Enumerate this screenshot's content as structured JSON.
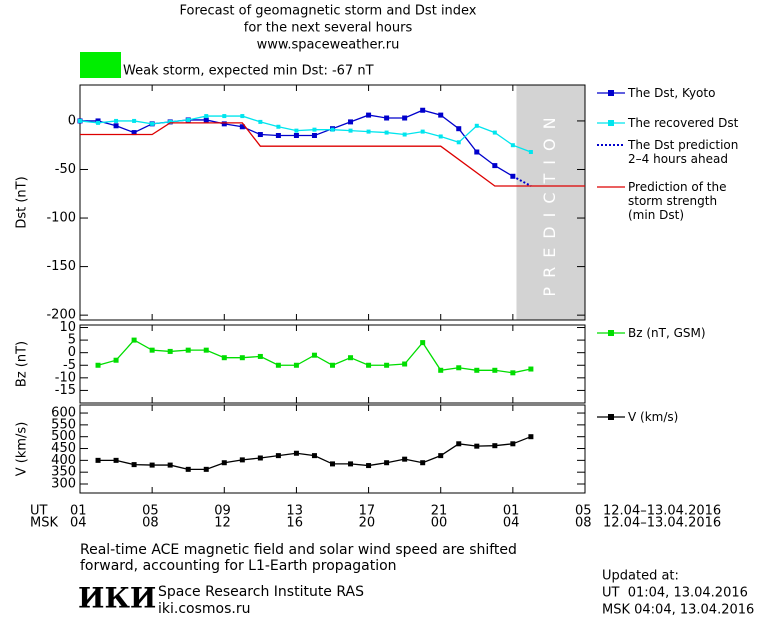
{
  "header": {
    "title_lines": [
      "Forecast of geomagnetic storm and Dst index",
      "for the next several hours",
      "www.spaceweather.ru"
    ],
    "storm_label": "Weak storm, expected min Dst: -67 nT",
    "storm_color": "#00ee00"
  },
  "chart_data": [
    {
      "type": "line",
      "ylabel": "Dst (nT)",
      "xlim": [
        0,
        28
      ],
      "ylim": [
        -205,
        37
      ],
      "yticks": [
        0,
        -50,
        -100,
        -150,
        -200
      ],
      "forecast_region": {
        "x": [
          24.2,
          28
        ],
        "label": "PREDICTION",
        "color": "#d3d3d3"
      },
      "series": [
        {
          "name": "The Dst, Kyoto",
          "color": "#0000cc",
          "marker": "square",
          "x": [
            0,
            1,
            2,
            3,
            4,
            5,
            6,
            7,
            8,
            9,
            10,
            11,
            12,
            13,
            14,
            15,
            16,
            17,
            18,
            19,
            20,
            21,
            22,
            23,
            24
          ],
          "values": [
            0,
            0,
            -5,
            -12,
            -3,
            -1,
            1,
            1,
            -3,
            -6,
            -14,
            -15,
            -15,
            -15,
            -8,
            -1,
            6,
            3,
            3,
            11,
            6,
            -8,
            -32,
            -46,
            -57
          ]
        },
        {
          "name": "The recovered Dst",
          "color": "#00e5ee",
          "marker": "small-square",
          "x": [
            0,
            1,
            2,
            3,
            4,
            5,
            6,
            7,
            8,
            9,
            10,
            11,
            12,
            13,
            14,
            15,
            16,
            17,
            18,
            19,
            20,
            21,
            22,
            23,
            24,
            25
          ],
          "values": [
            0,
            -2,
            0,
            0,
            -3,
            -1,
            1,
            5,
            5,
            5,
            -1,
            -6,
            -10,
            -9,
            -9,
            -10,
            -11,
            -12,
            -14,
            -11,
            -16,
            -22,
            -5,
            -12,
            -25,
            -32
          ]
        },
        {
          "name": "The Dst prediction\n2–4 hours ahead",
          "color": "#0000cc",
          "style": "dotted",
          "x": [
            24,
            25
          ],
          "values": [
            -57,
            -67
          ]
        },
        {
          "name": "Prediction of the\nstorm strength\n(min Dst)",
          "color": "#dd0000",
          "x": [
            0,
            4,
            5,
            9,
            10,
            20,
            23,
            28
          ],
          "values": [
            -14,
            -14,
            -2,
            -2,
            -26,
            -26,
            -67,
            -67
          ]
        }
      ]
    },
    {
      "type": "line",
      "ylabel": "Bz (nT)",
      "xlim": [
        0,
        28
      ],
      "ylim": [
        -20,
        11
      ],
      "yticks": [
        10,
        5,
        0,
        -5,
        -10,
        -15
      ],
      "series": [
        {
          "name": "Bz (nT, GSM)",
          "color": "#00dd00",
          "marker": "square",
          "x": [
            1,
            2,
            3,
            4,
            5,
            6,
            7,
            8,
            9,
            10,
            11,
            12,
            13,
            14,
            15,
            16,
            17,
            18,
            19,
            20,
            21,
            22,
            23,
            24,
            25
          ],
          "values": [
            -5,
            -3,
            5,
            1,
            0.5,
            1,
            1,
            -2,
            -2,
            -1.5,
            -5,
            -5,
            -1,
            -5,
            -2,
            -5,
            -5,
            -4.5,
            4,
            -7,
            -6,
            -7,
            -7,
            -8,
            -6.5
          ]
        }
      ]
    },
    {
      "type": "line",
      "ylabel": "V (km/s)",
      "xlim": [
        0,
        28
      ],
      "ylim": [
        262,
        634
      ],
      "yticks": [
        300,
        350,
        400,
        450,
        500,
        550,
        600
      ],
      "xticks": [
        {
          "value": 0,
          "label": "01"
        },
        {
          "value": 4,
          "label": "05"
        },
        {
          "value": 8,
          "label": "09"
        },
        {
          "value": 12,
          "label": "13"
        },
        {
          "value": 16,
          "label": "17"
        },
        {
          "value": 20,
          "label": "21"
        },
        {
          "value": 24,
          "label": "01"
        },
        {
          "value": 28,
          "label": "05"
        }
      ],
      "xticks_msk": [
        {
          "value": 0,
          "label": "04"
        },
        {
          "value": 4,
          "label": "08"
        },
        {
          "value": 8,
          "label": "12"
        },
        {
          "value": 12,
          "label": "16"
        },
        {
          "value": 16,
          "label": "20"
        },
        {
          "value": 20,
          "label": "00"
        },
        {
          "value": 24,
          "label": "04"
        },
        {
          "value": 28,
          "label": "08"
        }
      ],
      "series": [
        {
          "name": "V (km/s)",
          "color": "#000000",
          "marker": "square",
          "x": [
            1,
            2,
            3,
            4,
            5,
            6,
            7,
            8,
            9,
            10,
            11,
            12,
            13,
            14,
            15,
            16,
            17,
            18,
            19,
            20,
            21,
            22,
            23,
            24,
            25
          ],
          "values": [
            400,
            400,
            382,
            380,
            380,
            362,
            362,
            390,
            402,
            410,
            420,
            430,
            420,
            385,
            385,
            378,
            390,
            405,
            390,
            420,
            470,
            460,
            462,
            470,
            500
          ]
        }
      ]
    }
  ],
  "time_axis": {
    "rows": [
      "UT",
      "MSK"
    ],
    "dates": [
      "12.04–13.04.2016",
      "12.04–13.04.2016"
    ]
  },
  "footer": {
    "note_lines": [
      "Real-time ACE magnetic field and solar wind speed are shifted",
      "forward, accounting for L1-Earth propagation"
    ],
    "logo": "ИКИ",
    "institute": "Space Research Institute RAS",
    "site": "iki.cosmos.ru",
    "updated_title": "Updated at:",
    "updated_lines": [
      "UT  01:04, 13.04.2016",
      "MSK 04:04, 13.04.2016"
    ]
  }
}
